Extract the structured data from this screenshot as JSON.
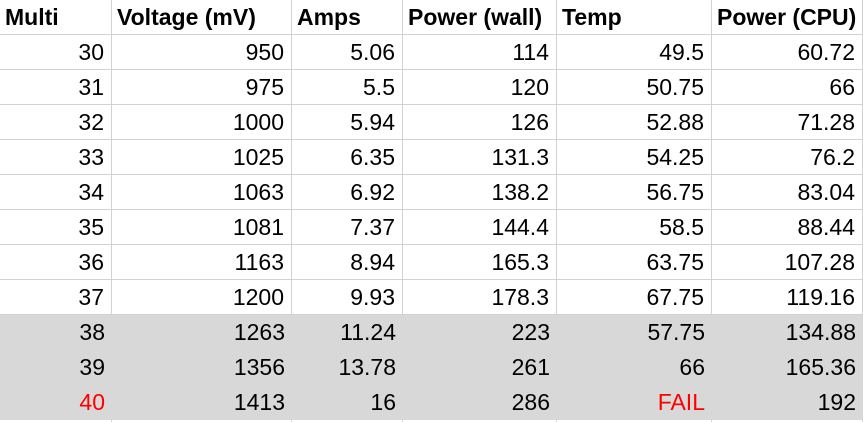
{
  "sheet": {
    "header": {
      "cells": [
        "Multi",
        "Voltage (mV)",
        "Amps",
        "Power (wall)",
        "Temp",
        "Power (CPU)"
      ]
    },
    "rows": [
      {
        "cells": [
          "30",
          "950",
          "5.06",
          "114",
          "49.5",
          "60.72"
        ],
        "shaded": false
      },
      {
        "cells": [
          "31",
          "975",
          "5.5",
          "120",
          "50.75",
          "66"
        ],
        "shaded": false
      },
      {
        "cells": [
          "32",
          "1000",
          "5.94",
          "126",
          "52.88",
          "71.28"
        ],
        "shaded": false
      },
      {
        "cells": [
          "33",
          "1025",
          "6.35",
          "131.3",
          "54.25",
          "76.2"
        ],
        "shaded": false
      },
      {
        "cells": [
          "34",
          "1063",
          "6.92",
          "138.2",
          "56.75",
          "83.04"
        ],
        "shaded": false
      },
      {
        "cells": [
          "35",
          "1081",
          "7.37",
          "144.4",
          "58.5",
          "88.44"
        ],
        "shaded": false
      },
      {
        "cells": [
          "36",
          "1163",
          "8.94",
          "165.3",
          "63.75",
          "107.28"
        ],
        "shaded": false
      },
      {
        "cells": [
          "37",
          "1200",
          "9.93",
          "178.3",
          "67.75",
          "119.16"
        ],
        "shaded": false
      },
      {
        "cells": [
          "38",
          "1263",
          "11.24",
          "223",
          "57.75",
          "134.88"
        ],
        "shaded": true
      },
      {
        "cells": [
          "39",
          "1356",
          "13.78",
          "261",
          "66",
          "165.36"
        ],
        "shaded": true
      },
      {
        "cells": [
          "40",
          "1413",
          "16",
          "286",
          "FAIL",
          "192"
        ],
        "shaded": true,
        "red_cells": [
          0,
          4
        ]
      }
    ],
    "colors": {
      "text": "#000000",
      "fail_red": "#ff0000",
      "shaded_row_bg": "#d8d8d8",
      "gridline": "#d2d2d2",
      "background": "#ffffff"
    }
  }
}
